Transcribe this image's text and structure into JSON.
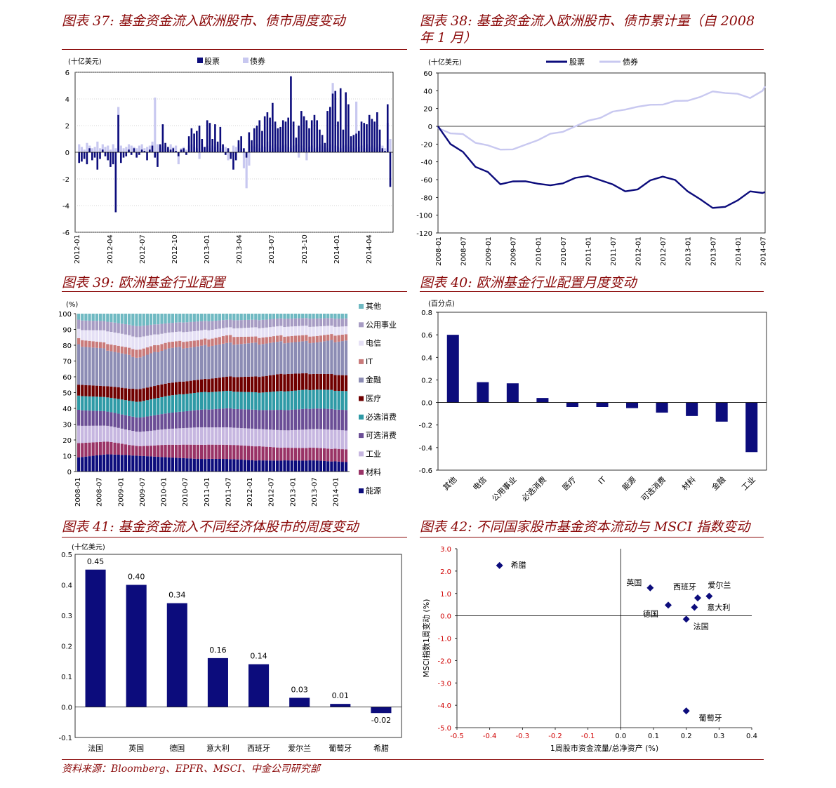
{
  "colors": {
    "navy": "#0C0C7C",
    "lav": "#C8C8F0",
    "title": "#8B0A0A",
    "red": "#D00000"
  },
  "source": "资料来源：Bloomberg、EPFR、MSCI、中金公司研究部",
  "fig37": {
    "title": "图表 37: 基金资金流入欧洲股市、债市周度变动",
    "unit": "(十亿美元)",
    "legend": [
      "股票",
      "债券"
    ],
    "chart_data": {
      "type": "bar",
      "title": "基金资金流入欧洲股市、债市周度变动",
      "ylabel": "(十亿美元)",
      "ylim": [
        -6,
        6
      ],
      "yticks": [
        6,
        4,
        2,
        0,
        -2,
        -4,
        -6
      ],
      "xticks": [
        "2012-01",
        "2012-04",
        "2012-07",
        "2012-10",
        "2013-01",
        "2013-04",
        "2013-07",
        "2013-10",
        "2014-01",
        "2014-04"
      ],
      "series": [
        {
          "name": "股票",
          "values": [
            -0.8,
            -0.7,
            -0.5,
            -0.9,
            0.3,
            -0.6,
            -0.4,
            -1.3,
            -0.5,
            0.2,
            -0.3,
            -0.6,
            -1.1,
            -0.9,
            -4.5,
            2.8,
            -0.8,
            -0.4,
            -0.3,
            0.2,
            -0.2,
            0.3,
            -0.4,
            -0.2,
            0.2,
            0.1,
            -0.6,
            0.2,
            0.5,
            -0.4,
            -1.1,
            0.6,
            2.1,
            0.7,
            0.4,
            0.2,
            0.3,
            0.1,
            -0.3,
            0.2,
            0.3,
            -0.2,
            1.2,
            1.8,
            1.4,
            1.6,
            2.0,
            1.0,
            0.4,
            2.4,
            2.2,
            1.0,
            2.1,
            0.8,
            1.9,
            0.6,
            -0.2,
            0.3,
            -0.5,
            -1.3,
            -0.6,
            0.9,
            1.2,
            0.3,
            -0.4,
            1.5,
            0.9,
            1.8,
            2.0,
            2.4,
            1.6,
            2.7,
            3.0,
            2.6,
            3.7,
            2.3,
            1.8,
            1.9,
            2.4,
            2.3,
            2.6,
            5.7,
            2.3,
            1.1,
            2.0,
            3.1,
            2.7,
            2.4,
            1.8,
            2.4,
            2.8,
            2.4,
            1.7,
            1.3,
            0.7,
            3.1,
            3.4,
            4.4,
            4.6,
            2.3,
            4.8,
            1.7,
            4.5,
            3.6,
            1.2,
            1.3,
            1.4,
            1.6,
            2.3,
            2.2,
            2.1,
            2.8,
            2.5,
            2.3,
            3.0,
            1.7,
            0.3,
            0.1,
            3.6,
            -2.6
          ],
          "color": "#0C0C7C"
        },
        {
          "name": "债券",
          "values": [
            0.6,
            0.4,
            0.2,
            0.7,
            0.5,
            0.3,
            0.4,
            0.8,
            0.3,
            0.6,
            0.4,
            0.5,
            0.2,
            0.6,
            0.3,
            3.4,
            0.5,
            0.3,
            0.4,
            0.6,
            0.5,
            0.4,
            0.3,
            0.5,
            0.6,
            0.3,
            0.4,
            0.5,
            0.8,
            4.1,
            0.6,
            0.3,
            0.4,
            0.5,
            0.3,
            0.6,
            0.4,
            0.5,
            -0.9,
            0.3,
            0.4,
            0.2,
            0.5,
            0.6,
            0.4,
            0.3,
            -0.5,
            0.6,
            0.4,
            0.5,
            0.3,
            0.5,
            0.4,
            0.6,
            0.3,
            0.5,
            0.4,
            -0.6,
            -0.3,
            0.5,
            0.4,
            0.6,
            0.3,
            -1.2,
            -2.7,
            -1.0,
            0.5,
            0.4,
            0.6,
            0.3,
            0.5,
            0.4,
            0.8,
            0.5,
            0.3,
            0.6,
            0.4,
            0.3,
            0.5,
            0.6,
            0.4,
            0.3,
            0.5,
            0.6,
            -0.4,
            0.5,
            0.3,
            -0.6,
            0.4,
            0.5,
            0.3,
            0.4,
            0.6,
            0.5,
            0.4,
            0.3,
            0.6,
            5.2,
            0.5,
            0.4,
            0.3,
            0.5,
            0.6,
            0.4,
            0.5,
            0.3,
            3.8,
            0.4,
            0.5,
            0.3,
            0.6,
            0.4,
            0.5,
            0.3,
            0.4,
            0.6,
            0.5,
            0.3,
            2.2,
            1.0
          ],
          "color": "#C8C8F0"
        }
      ]
    }
  },
  "fig38": {
    "title_line1": "图表 38: 基金资金流入欧洲股市、债市累计量（自 2008",
    "title_line2": "年 1 月）",
    "unit": "(十亿美元)",
    "legend": [
      "股票",
      "债券"
    ],
    "chart_data": {
      "type": "line",
      "title": "基金资金流入欧洲股市、债市累计量（自 2008 年 1 月）",
      "ylim": [
        -120,
        60
      ],
      "yticks": [
        60,
        40,
        20,
        0,
        -20,
        -40,
        -60,
        -80,
        -100,
        -120
      ],
      "xticks": [
        "2008-01",
        "2008-07",
        "2009-01",
        "2009-07",
        "2010-01",
        "2010-07",
        "2011-01",
        "2011-07",
        "2012-01",
        "2012-07",
        "2013-01",
        "2013-07",
        "2014-01",
        "2014-07"
      ],
      "series": [
        {
          "name": "股票",
          "x": [
            0,
            0.5,
            1,
            1.5,
            2,
            2.5,
            3,
            3.5,
            4,
            4.5,
            5,
            5.5,
            6,
            6.5,
            7,
            7.5,
            8,
            8.5,
            9,
            9.5,
            10,
            10.5,
            11,
            11.5,
            12,
            12.5,
            13,
            13.1
          ],
          "values": [
            0,
            -20,
            -30,
            -45,
            -52,
            -64,
            -62,
            -63,
            -64,
            -67,
            -63,
            -58,
            -57,
            -60,
            -66,
            -72,
            -71,
            -62,
            -56,
            -61,
            -72,
            -82,
            -93,
            -90,
            -84,
            -72,
            -75,
            -74
          ],
          "color": "#0C0C7C"
        },
        {
          "name": "债券",
          "x": [
            0,
            0.5,
            1,
            1.5,
            2,
            2.5,
            3,
            3.5,
            4,
            4.5,
            5,
            5.5,
            6,
            6.5,
            7,
            7.5,
            8,
            8.5,
            9,
            9.5,
            10,
            10.5,
            11,
            11.5,
            12,
            12.5,
            13,
            13.1
          ],
          "values": [
            -2,
            -8,
            -10,
            -18,
            -22,
            -25,
            -26,
            -22,
            -15,
            -9,
            -5,
            0,
            5,
            10,
            16,
            20,
            22,
            23,
            25,
            28,
            30,
            33,
            38,
            38,
            36,
            33,
            40,
            45
          ],
          "color": "#C8C8F0"
        }
      ]
    }
  },
  "fig39": {
    "title": "图表 39: 欧洲基金行业配置",
    "unit": "(%)",
    "chart_data": {
      "type": "area",
      "title": "欧洲基金行业配置",
      "ylabel": "(%)",
      "ylim": [
        0,
        100
      ],
      "yticks": [
        100,
        90,
        80,
        70,
        60,
        50,
        40,
        30,
        20,
        10,
        0
      ],
      "xticks": [
        "2008-01",
        "2008-07",
        "2009-01",
        "2009-07",
        "2010-01",
        "2010-07",
        "2011-01",
        "2011-07",
        "2012-01",
        "2012-07",
        "2013-01",
        "2013-07",
        "2014-01"
      ],
      "series": [
        {
          "name": "能源",
          "values": [
            9,
            11,
            10,
            9,
            8,
            8,
            7,
            7,
            7,
            6
          ],
          "color": "#0C0C7C"
        },
        {
          "name": "材料",
          "values": [
            9,
            8,
            6,
            8,
            9,
            9,
            9,
            8,
            8,
            8
          ],
          "color": "#993366"
        },
        {
          "name": "工业",
          "values": [
            11,
            10,
            9,
            10,
            11,
            11,
            11,
            11,
            12,
            12
          ],
          "color": "#C6B6E0"
        },
        {
          "name": "可选消费",
          "values": [
            10,
            9,
            9,
            10,
            11,
            12,
            12,
            13,
            13,
            13
          ],
          "color": "#6B4E96"
        },
        {
          "name": "必选消费",
          "values": [
            9,
            9,
            10,
            11,
            11,
            11,
            11,
            12,
            12,
            12
          ],
          "color": "#2E9AA6"
        },
        {
          "name": "医疗",
          "values": [
            7,
            7,
            8,
            8,
            8,
            9,
            10,
            11,
            10,
            10
          ],
          "color": "#700000"
        },
        {
          "name": "金融",
          "values": [
            25,
            23,
            20,
            22,
            21,
            21,
            21,
            20,
            20,
            22
          ],
          "color": "#8C8CB4"
        },
        {
          "name": "IT",
          "values": [
            4,
            4,
            5,
            4,
            4,
            5,
            4,
            4,
            4,
            4
          ],
          "color": "#C97A7A"
        },
        {
          "name": "电信",
          "values": [
            6,
            8,
            8,
            6,
            6,
            5,
            6,
            6,
            6,
            5
          ],
          "color": "#E5E0F5"
        },
        {
          "name": "公用事业",
          "values": [
            6,
            6,
            7,
            6,
            6,
            5,
            5,
            5,
            5,
            5
          ],
          "color": "#A79CC4"
        },
        {
          "name": "其他",
          "values": [
            4,
            5,
            8,
            6,
            5,
            4,
            4,
            3,
            3,
            3
          ],
          "color": "#6FB9C2"
        }
      ]
    }
  },
  "fig40": {
    "title": "图表 40: 欧洲基金行业配置月度变动",
    "unit": "(百分点)",
    "chart_data": {
      "type": "bar",
      "title": "欧洲基金行业配置月度变动",
      "ylabel": "(百分点)",
      "ylim": [
        -0.6,
        0.8
      ],
      "yticks": [
        "0.8",
        "0.6",
        "0.4",
        "0.2",
        "0.0",
        "-0.2",
        "-0.4",
        "-0.6"
      ],
      "categories": [
        "其他",
        "电信",
        "公用事业",
        "必选消费",
        "医疗",
        "IT",
        "能源",
        "可选消费",
        "材料",
        "金融",
        "工业"
      ],
      "values": [
        0.6,
        0.18,
        0.17,
        0.04,
        -0.04,
        -0.04,
        -0.05,
        -0.09,
        -0.12,
        -0.17,
        -0.44
      ]
    }
  },
  "fig41": {
    "title": "图表 41: 基金资金流入不同经济体股市的周度变动",
    "unit": "(十亿美元)",
    "chart_data": {
      "type": "bar",
      "title": "基金资金流入不同经济体股市的周度变动",
      "ylabel": "(十亿美元)",
      "ylim": [
        -0.1,
        0.5
      ],
      "yticks": [
        "0.5",
        "0.4",
        "0.3",
        "0.2",
        "0.1",
        "0.0",
        "-0.1"
      ],
      "categories": [
        "法国",
        "英国",
        "德国",
        "意大利",
        "西班牙",
        "爱尔兰",
        "葡萄牙",
        "希腊"
      ],
      "values": [
        0.45,
        0.4,
        0.34,
        0.16,
        0.14,
        0.03,
        0.01,
        -0.02
      ],
      "labels": [
        "0.45",
        "0.40",
        "0.34",
        "0.16",
        "0.14",
        "0.03",
        "0.01",
        "-0.02"
      ]
    }
  },
  "fig42": {
    "title": "图表 42: 不同国家股市基金资本流动与 MSCI 指数变动",
    "chart_data": {
      "type": "scatter",
      "title": "不同国家股市基金资本流动与 MSCI 指数变动",
      "xlabel": "1周股市资金流量/总净资产 (%)",
      "ylabel": "MSCI指数1周变动 (%)",
      "xlim": [
        -0.5,
        0.4
      ],
      "ylim": [
        -5,
        3
      ],
      "xticks": [
        "-0.5",
        "-0.4",
        "-0.3",
        "-0.2",
        "-0.1",
        "0.0",
        "0.1",
        "0.2",
        "0.3",
        "0.4"
      ],
      "yticks": [
        "3.0",
        "2.0",
        "1.0",
        "0.0",
        "-1.0",
        "-2.0",
        "-3.0",
        "-4.0",
        "-5.0"
      ],
      "points": [
        {
          "label": "希腊",
          "x": -0.37,
          "y": 2.25
        },
        {
          "label": "英国",
          "x": 0.09,
          "y": 1.25
        },
        {
          "label": "西班牙",
          "x": 0.235,
          "y": 0.8
        },
        {
          "label": "爱尔兰",
          "x": 0.27,
          "y": 0.88
        },
        {
          "label": "德国",
          "x": 0.145,
          "y": 0.48
        },
        {
          "label": "意大利",
          "x": 0.225,
          "y": 0.38
        },
        {
          "label": "法国",
          "x": 0.2,
          "y": -0.15
        },
        {
          "label": "葡萄牙",
          "x": 0.2,
          "y": -4.25
        }
      ]
    }
  }
}
